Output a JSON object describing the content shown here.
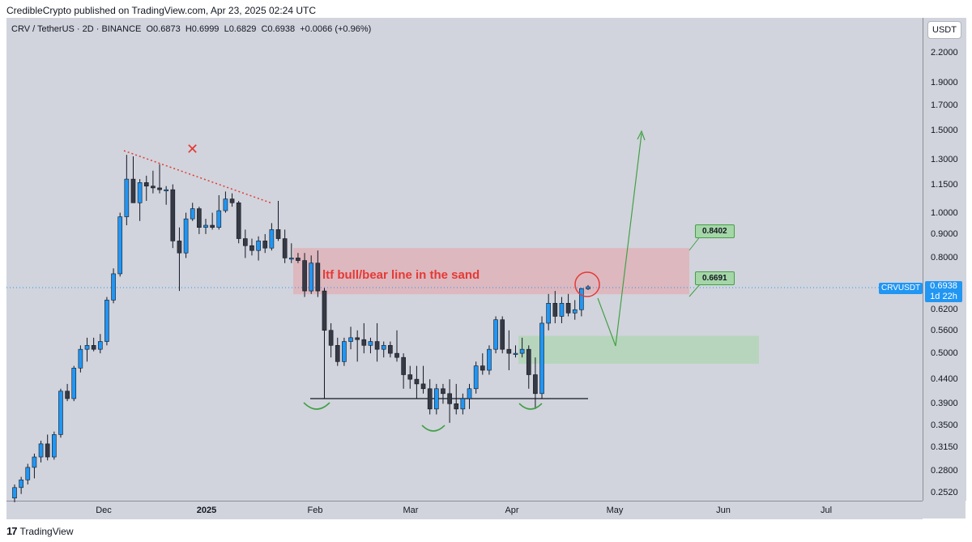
{
  "header": {
    "text": "CredibleCrypto published on TradingView.com, Apr 23, 2025 02:24 UTC"
  },
  "legend": {
    "symbol": "CRV / TetherUS · 2D · BINANCE",
    "open_label": "O",
    "open": "0.6873",
    "high_label": "H",
    "high": "0.6999",
    "low_label": "L",
    "low": "0.6829",
    "close_label": "C",
    "close": "0.6938",
    "change": "+0.0066 (+0.96%)"
  },
  "currency_button": "USDT",
  "price_axis": {
    "labels": [
      "2.2000",
      "1.9000",
      "1.7000",
      "1.5000",
      "1.3000",
      "1.1500",
      "1.0000",
      "0.9000",
      "0.8000",
      "0.7000",
      "0.6200",
      "0.5600",
      "0.5000",
      "0.4400",
      "0.3900",
      "0.3500",
      "0.3150",
      "0.2800",
      "0.2520"
    ]
  },
  "time_axis": {
    "labels": [
      "Dec",
      "2025",
      "Feb",
      "Mar",
      "Apr",
      "May",
      "Jun",
      "Jul"
    ]
  },
  "current_price": {
    "symbol": "CRVUSDT",
    "value": "0.6938",
    "countdown": "1d 22h"
  },
  "annotations": {
    "zone_label": "ltf bull/bear line in the sand",
    "level_high": "0.8402",
    "level_low": "0.6691",
    "cross_mark": "✕"
  },
  "colors": {
    "up": "#2196f3",
    "down": "#363a45",
    "resistance_zone": "#e8a0a8",
    "support_zone": "#a5d6a7",
    "arrow": "#43a047",
    "trend": "#e53935"
  },
  "footer": {
    "brand": "TradingView"
  },
  "chart_data": {
    "type": "candlestick",
    "symbol": "CRV / TetherUS",
    "interval": "2D",
    "exchange": "BINANCE",
    "y_scale": "log",
    "ylim": [
      0.24,
      2.4
    ],
    "candles": [
      [
        0.245,
        0.262,
        0.24,
        0.258
      ],
      [
        0.258,
        0.272,
        0.25,
        0.268
      ],
      [
        0.268,
        0.29,
        0.262,
        0.285
      ],
      [
        0.285,
        0.305,
        0.27,
        0.3
      ],
      [
        0.3,
        0.325,
        0.292,
        0.32
      ],
      [
        0.32,
        0.335,
        0.295,
        0.3
      ],
      [
        0.3,
        0.34,
        0.296,
        0.335
      ],
      [
        0.335,
        0.42,
        0.33,
        0.415
      ],
      [
        0.415,
        0.43,
        0.395,
        0.4
      ],
      [
        0.4,
        0.47,
        0.395,
        0.465
      ],
      [
        0.465,
        0.52,
        0.455,
        0.51
      ],
      [
        0.51,
        0.54,
        0.48,
        0.52
      ],
      [
        0.52,
        0.54,
        0.505,
        0.51
      ],
      [
        0.51,
        0.55,
        0.5,
        0.53
      ],
      [
        0.53,
        0.66,
        0.52,
        0.65
      ],
      [
        0.65,
        0.76,
        0.64,
        0.74
      ],
      [
        0.74,
        1.0,
        0.73,
        0.98
      ],
      [
        0.98,
        1.33,
        0.94,
        1.18
      ],
      [
        1.18,
        1.32,
        1.05,
        1.05
      ],
      [
        1.05,
        1.18,
        0.96,
        1.16
      ],
      [
        1.16,
        1.2,
        1.06,
        1.14
      ],
      [
        1.14,
        1.23,
        1.1,
        1.13
      ],
      [
        1.13,
        1.27,
        1.1,
        1.12
      ],
      [
        1.12,
        1.14,
        1.04,
        1.12
      ],
      [
        1.12,
        1.15,
        0.84,
        0.87
      ],
      [
        0.87,
        0.93,
        0.68,
        0.82
      ],
      [
        0.82,
        1.0,
        0.8,
        0.97
      ],
      [
        0.97,
        1.05,
        0.96,
        1.02
      ],
      [
        1.02,
        1.03,
        0.9,
        0.93
      ],
      [
        0.93,
        0.97,
        0.9,
        0.94
      ],
      [
        0.94,
        1.0,
        0.92,
        0.93
      ],
      [
        0.93,
        1.09,
        0.92,
        1.01
      ],
      [
        1.01,
        1.11,
        1.0,
        1.07
      ],
      [
        1.07,
        1.1,
        1.03,
        1.05
      ],
      [
        1.05,
        1.06,
        0.86,
        0.88
      ],
      [
        0.88,
        0.92,
        0.8,
        0.85
      ],
      [
        0.85,
        0.88,
        0.81,
        0.83
      ],
      [
        0.83,
        0.89,
        0.79,
        0.87
      ],
      [
        0.87,
        0.9,
        0.82,
        0.84
      ],
      [
        0.84,
        0.95,
        0.83,
        0.92
      ],
      [
        0.92,
        1.06,
        0.87,
        0.88
      ],
      [
        0.88,
        0.92,
        0.78,
        0.8
      ],
      [
        0.8,
        0.86,
        0.78,
        0.8
      ],
      [
        0.8,
        0.82,
        0.78,
        0.79
      ],
      [
        0.79,
        0.82,
        0.66,
        0.68
      ],
      [
        0.68,
        0.81,
        0.67,
        0.78
      ],
      [
        0.78,
        0.83,
        0.66,
        0.68
      ],
      [
        0.68,
        0.69,
        0.4,
        0.56
      ],
      [
        0.56,
        0.58,
        0.49,
        0.52
      ],
      [
        0.52,
        0.54,
        0.47,
        0.48
      ],
      [
        0.48,
        0.54,
        0.47,
        0.53
      ],
      [
        0.53,
        0.57,
        0.51,
        0.54
      ],
      [
        0.54,
        0.56,
        0.48,
        0.535
      ],
      [
        0.535,
        0.58,
        0.5,
        0.52
      ],
      [
        0.52,
        0.54,
        0.5,
        0.53
      ],
      [
        0.53,
        0.58,
        0.48,
        0.51
      ],
      [
        0.51,
        0.53,
        0.49,
        0.52
      ],
      [
        0.52,
        0.53,
        0.49,
        0.5
      ],
      [
        0.5,
        0.56,
        0.48,
        0.49
      ],
      [
        0.49,
        0.5,
        0.42,
        0.45
      ],
      [
        0.45,
        0.47,
        0.42,
        0.44
      ],
      [
        0.44,
        0.47,
        0.4,
        0.43
      ],
      [
        0.43,
        0.47,
        0.41,
        0.42
      ],
      [
        0.42,
        0.44,
        0.37,
        0.38
      ],
      [
        0.38,
        0.43,
        0.37,
        0.42
      ],
      [
        0.42,
        0.43,
        0.39,
        0.41
      ],
      [
        0.41,
        0.44,
        0.355,
        0.39
      ],
      [
        0.39,
        0.43,
        0.37,
        0.38
      ],
      [
        0.38,
        0.41,
        0.37,
        0.4
      ],
      [
        0.4,
        0.43,
        0.38,
        0.42
      ],
      [
        0.42,
        0.48,
        0.41,
        0.47
      ],
      [
        0.47,
        0.5,
        0.45,
        0.46
      ],
      [
        0.46,
        0.52,
        0.45,
        0.51
      ],
      [
        0.51,
        0.6,
        0.5,
        0.59
      ],
      [
        0.59,
        0.6,
        0.5,
        0.51
      ],
      [
        0.51,
        0.56,
        0.46,
        0.5
      ],
      [
        0.5,
        0.52,
        0.49,
        0.5
      ],
      [
        0.5,
        0.54,
        0.49,
        0.51
      ],
      [
        0.51,
        0.52,
        0.42,
        0.45
      ],
      [
        0.45,
        0.49,
        0.38,
        0.41
      ],
      [
        0.41,
        0.6,
        0.4,
        0.58
      ],
      [
        0.58,
        0.67,
        0.56,
        0.64
      ],
      [
        0.64,
        0.68,
        0.58,
        0.6
      ],
      [
        0.6,
        0.66,
        0.58,
        0.64
      ],
      [
        0.64,
        0.67,
        0.6,
        0.61
      ],
      [
        0.61,
        0.65,
        0.59,
        0.62
      ],
      [
        0.62,
        0.69,
        0.6,
        0.688
      ],
      [
        0.687,
        0.7,
        0.683,
        0.694
      ]
    ],
    "levels": [
      0.8402,
      0.6691
    ],
    "neckline": 0.4
  }
}
